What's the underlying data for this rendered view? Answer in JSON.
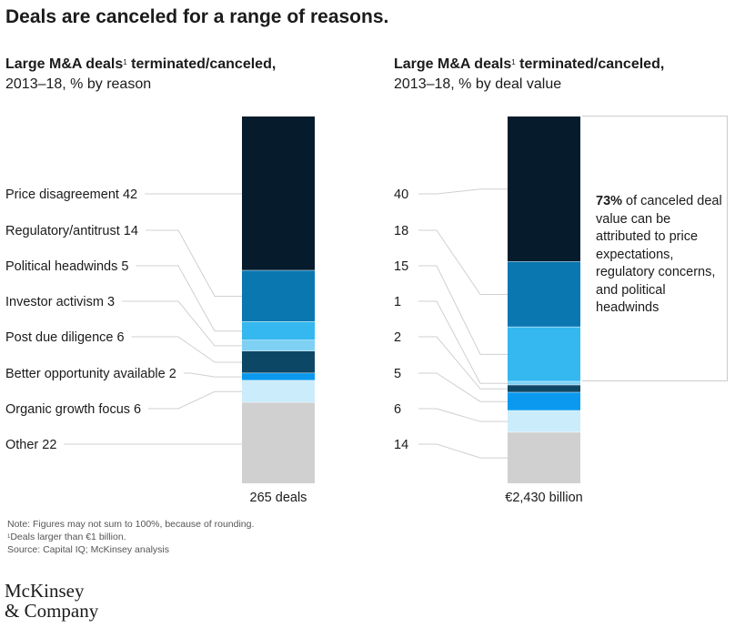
{
  "title": "Deals are canceled for a range of reasons.",
  "colors": {
    "navy": "#061c2c",
    "blue": "#0a77b1",
    "sky": "#34b8ef",
    "light_sky": "#7fd1f3",
    "dark_teal": "#0d4766",
    "bright_blue": "#0a99ef",
    "pale_blue": "#cbecfa",
    "gray": "#d0d0d0"
  },
  "chart_data": [
    {
      "type": "bar",
      "stacked": true,
      "title_bold": "Large M&A deals",
      "title_sup": "1",
      "title_bold_tail": " terminated/canceled,",
      "subtitle": "2013–18, % by reason",
      "total_label": "265 deals",
      "segments": [
        {
          "name": "Price disagreement",
          "value": 42,
          "label": "Price disagreement 42",
          "color": "#061c2c"
        },
        {
          "name": "Regulatory/antitrust",
          "value": 14,
          "label": "Regulatory/antitrust 14",
          "color": "#0a77b1"
        },
        {
          "name": "Political headwinds",
          "value": 5,
          "label": "Political headwinds 5",
          "color": "#34b8ef"
        },
        {
          "name": "Investor activism",
          "value": 3,
          "label": "Investor activism 3",
          "color": "#7fd1f3"
        },
        {
          "name": "Post due diligence",
          "value": 6,
          "label": "Post due diligence 6",
          "color": "#0d4766"
        },
        {
          "name": "Better opportunity available",
          "value": 2,
          "label": "Better opportunity available 2",
          "color": "#0a99ef"
        },
        {
          "name": "Organic growth focus",
          "value": 6,
          "label": "Organic growth focus 6",
          "color": "#cbecfa"
        },
        {
          "name": "Other",
          "value": 22,
          "label": "Other 22",
          "color": "#d0d0d0"
        }
      ]
    },
    {
      "type": "bar",
      "stacked": true,
      "title_bold": "Large M&A deals",
      "title_sup": "1",
      "title_bold_tail": " terminated/canceled,",
      "subtitle": "2013–18, % by deal value",
      "total_label": "€2,430 billion",
      "segments": [
        {
          "name": "Price disagreement",
          "value": 40,
          "label": "40",
          "color": "#061c2c"
        },
        {
          "name": "Regulatory/antitrust",
          "value": 18,
          "label": "18",
          "color": "#0a77b1"
        },
        {
          "name": "Political headwinds",
          "value": 15,
          "label": "15",
          "color": "#34b8ef"
        },
        {
          "name": "Investor activism",
          "value": 1,
          "label": "1",
          "color": "#7fd1f3"
        },
        {
          "name": "Post due diligence",
          "value": 2,
          "label": "2",
          "color": "#0d4766"
        },
        {
          "name": "Better opportunity available",
          "value": 5,
          "label": "5",
          "color": "#0a99ef"
        },
        {
          "name": "Organic growth focus",
          "value": 6,
          "label": "6",
          "color": "#cbecfa"
        },
        {
          "name": "Other",
          "value": 14,
          "label": "14",
          "color": "#d0d0d0"
        }
      ]
    }
  ],
  "callout": {
    "pct": "73%",
    "text": " of canceled deal value can be attributed to price expectations, regulatory concerns, and political headwinds"
  },
  "notes": {
    "line1": "Note: Figures may not sum to 100%, because of rounding.",
    "line2_sup": "1",
    "line2": "Deals larger than €1 billion.",
    "line3": "Source: Capital IQ; McKinsey analysis"
  },
  "brand": {
    "line1": "McKinsey",
    "line2": "& Company"
  }
}
